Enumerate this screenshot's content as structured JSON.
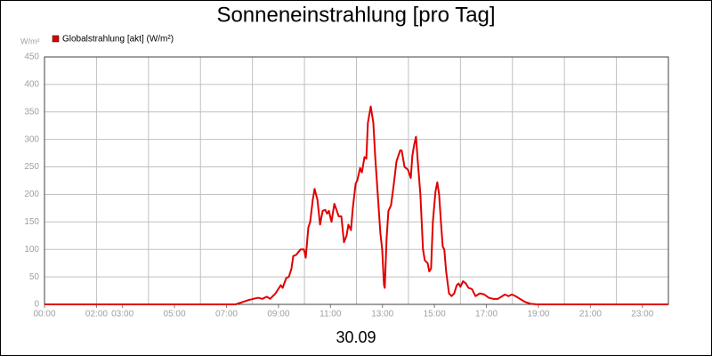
{
  "chart_data": {
    "type": "line",
    "title": "Sonneneinstrahlung [pro Tag]",
    "y_unit": "W/m²",
    "x_label": "30.09",
    "series": [
      {
        "name": "Globalstrahlung [akt] (W/m²)",
        "color": "#e00000",
        "values": [
          0,
          0,
          8,
          12,
          10,
          14,
          10,
          20,
          35,
          30,
          48,
          50,
          65,
          88,
          90,
          100,
          100,
          85,
          140,
          150,
          190,
          210,
          190,
          145,
          170,
          172,
          165,
          170,
          150,
          183,
          175,
          160,
          160,
          113,
          125,
          145,
          135,
          175,
          220,
          225,
          248,
          240,
          268,
          265,
          330,
          360,
          330,
          270,
          200,
          130,
          100,
          35,
          30,
          120,
          170,
          180,
          220,
          260,
          280,
          280,
          250,
          245,
          230,
          270,
          290,
          305,
          260,
          200,
          100,
          80,
          75,
          60,
          65,
          150,
          205,
          222,
          200,
          150,
          105,
          100,
          60,
          20,
          15,
          20,
          35,
          38,
          32,
          42,
          38,
          30,
          28,
          15,
          20,
          18,
          12,
          10,
          10,
          15,
          18,
          15,
          18,
          15,
          10,
          5,
          1,
          0,
          0
        ]
      }
    ],
    "x": [
      0,
      7.35,
      7.86,
      8.21,
      8.38,
      8.55,
      8.68,
      8.89,
      9.09,
      9.16,
      9.3,
      9.4,
      9.5,
      9.57,
      9.68,
      9.85,
      9.98,
      10.05,
      10.15,
      10.22,
      10.32,
      10.39,
      10.5,
      10.6,
      10.7,
      10.8,
      10.87,
      10.94,
      11.04,
      11.15,
      11.21,
      11.32,
      11.42,
      11.52,
      11.62,
      11.69,
      11.79,
      11.86,
      11.97,
      12.03,
      12.14,
      12.21,
      12.31,
      12.38,
      12.44,
      12.55,
      12.65,
      12.72,
      12.82,
      12.92,
      12.99,
      13.06,
      13.09,
      13.16,
      13.23,
      13.33,
      13.44,
      13.54,
      13.68,
      13.74,
      13.85,
      13.98,
      14.09,
      14.15,
      14.22,
      14.29,
      14.36,
      14.46,
      14.56,
      14.63,
      14.74,
      14.8,
      14.87,
      14.94,
      15.04,
      15.11,
      15.18,
      15.25,
      15.32,
      15.38,
      15.45,
      15.56,
      15.66,
      15.76,
      15.86,
      15.93,
      16.0,
      16.1,
      16.21,
      16.31,
      16.44,
      16.58,
      16.75,
      16.92,
      17.09,
      17.26,
      17.44,
      17.61,
      17.71,
      17.85,
      17.98,
      18.12,
      18.29,
      18.46,
      18.7,
      18.97,
      24
    ],
    "xlim": [
      0,
      24
    ],
    "xticks": [
      {
        "value": 0,
        "label": "00:00"
      },
      {
        "value": 2,
        "label": "02:00"
      },
      {
        "value": 3,
        "label": "03:00"
      },
      {
        "value": 5,
        "label": "05:00"
      },
      {
        "value": 7,
        "label": "07:00"
      },
      {
        "value": 9,
        "label": "09:00"
      },
      {
        "value": 11,
        "label": "11:00"
      },
      {
        "value": 13,
        "label": "13:00"
      },
      {
        "value": 15,
        "label": "15:00"
      },
      {
        "value": 17,
        "label": "17:00"
      },
      {
        "value": 19,
        "label": "19:00"
      },
      {
        "value": 21,
        "label": "21:00"
      },
      {
        "value": 23,
        "label": "23:00"
      }
    ],
    "xgrid": [
      2,
      4,
      6,
      8,
      10,
      12,
      14,
      16,
      18,
      20,
      22
    ],
    "ylim": [
      0,
      450
    ],
    "yticks": [
      0,
      50,
      100,
      150,
      200,
      250,
      300,
      350,
      400,
      450
    ],
    "grid": true
  }
}
